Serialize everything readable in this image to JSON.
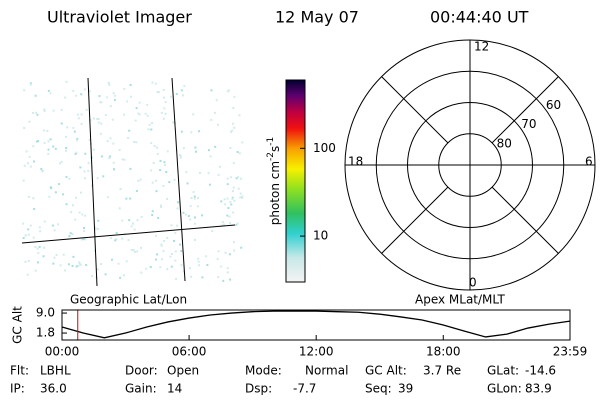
{
  "header": {
    "title": "Ultraviolet Imager",
    "date": "12 May 07",
    "time": "00:44:40 UT"
  },
  "colorbar": {
    "label_parts": [
      "photon cm",
      "-2",
      "s",
      "-1"
    ],
    "scale": "log",
    "clim": [
      3,
      600
    ],
    "ticks": [
      10,
      100
    ]
  },
  "polar": {
    "mlt_labels": {
      "top": "12",
      "left": "18",
      "right": "6",
      "bottom": "0"
    },
    "lat_lim": [
      50,
      90
    ],
    "lat_ticks": [
      60,
      70,
      80
    ]
  },
  "chart_data": {
    "type": "line",
    "ylabel": "GC Alt",
    "left_label": "Geographic Lat/Lon",
    "right_label": "Apex MLat/MLT",
    "x": [
      0,
      1,
      2,
      3,
      4,
      5,
      6,
      7,
      8,
      9,
      10,
      11,
      12,
      13,
      14,
      15,
      16,
      17,
      18,
      19,
      20,
      21,
      22,
      23,
      23.983
    ],
    "series": [
      {
        "name": "GC Alt",
        "color": "#000000",
        "values": [
          4.0,
          1.8,
          0.1,
          1.8,
          4.0,
          5.8,
          7.2,
          8.3,
          9.0,
          9.5,
          9.7,
          9.7,
          9.7,
          9.5,
          9.3,
          8.6,
          7.6,
          6.5,
          4.7,
          2.5,
          0.4,
          1.4,
          3.6,
          5.0,
          6.1
        ]
      }
    ],
    "xlim": [
      0,
      23.983
    ],
    "xticks": [
      {
        "value": 0,
        "label": "00:00"
      },
      {
        "value": 6,
        "label": "06:00"
      },
      {
        "value": 12,
        "label": "12:00"
      },
      {
        "value": 18,
        "label": "18:00"
      },
      {
        "value": 23.983,
        "label": "23:59"
      }
    ],
    "ylim": [
      -0.7,
      10.1
    ],
    "yticks": [
      1.8,
      {
        "value": 9,
        "label": "9.0"
      }
    ],
    "marker_x": 0.744,
    "marker_color": "#e00000"
  },
  "info": [
    {
      "label": "Flt:",
      "value": "LBHL"
    },
    {
      "label": "IP:",
      "value": "36.0"
    },
    {
      "label": "Door:",
      "value": "Open"
    },
    {
      "label": "Gain:",
      "value": "14"
    },
    {
      "label": "Mode:",
      "value": "Normal"
    },
    {
      "label": "Dsp:",
      "value": "-7.7"
    },
    {
      "label": "GC Alt:",
      "value": "3.7 Re"
    },
    {
      "label": "Seq:",
      "value": "39"
    },
    {
      "label": "GLat:",
      "value": "-14.6"
    },
    {
      "label": "GLon:",
      "value": "83.9"
    }
  ]
}
